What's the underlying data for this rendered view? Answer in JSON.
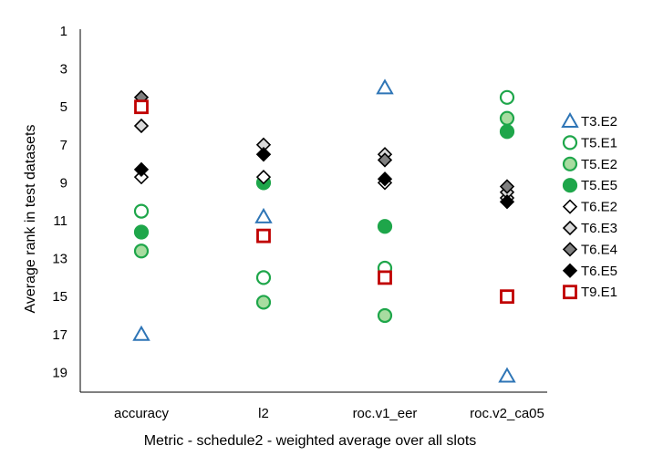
{
  "chart_data": {
    "type": "scatter",
    "xlabel": "Metric - schedule2 - weighted average over all slots",
    "ylabel": "Average rank in test datasets",
    "categories": [
      "accuracy",
      "l2",
      "roc.v1_eer",
      "roc.v2_ca05"
    ],
    "y_ticks": [
      "1",
      "3",
      "5",
      "7",
      "9",
      "11",
      "13",
      "15",
      "17",
      "19"
    ],
    "ylim": [
      1,
      20.2
    ],
    "y_inverted": true,
    "grid": false,
    "legend_position": "right",
    "series": [
      {
        "name": "T3.E2",
        "marker": "triangle-open",
        "color": "#2e75b6",
        "values": [
          17.0,
          10.8,
          4.0,
          19.2
        ]
      },
      {
        "name": "T5.E1",
        "marker": "circle-open",
        "color": "#1ea64a",
        "values": [
          10.5,
          14.0,
          13.5,
          4.5
        ]
      },
      {
        "name": "T5.E2",
        "marker": "circle-light",
        "color": "#1ea64a",
        "fill": "#a8dca0",
        "values": [
          12.6,
          15.3,
          16.0,
          5.6
        ]
      },
      {
        "name": "T5.E5",
        "marker": "circle-filled",
        "color": "#1ea64a",
        "values": [
          11.6,
          9.0,
          11.3,
          6.3
        ]
      },
      {
        "name": "T6.E2",
        "marker": "diamond-open",
        "color": "#000000",
        "values": [
          8.7,
          8.7,
          9.0,
          9.8
        ]
      },
      {
        "name": "T6.E3",
        "marker": "diamond-light",
        "color": "#000000",
        "fill": "#d9d9d9",
        "values": [
          6.0,
          7.0,
          7.5,
          9.5
        ]
      },
      {
        "name": "T6.E4",
        "marker": "diamond-gray",
        "color": "#000000",
        "fill": "#808080",
        "values": [
          4.5,
          7.5,
          7.8,
          9.2
        ]
      },
      {
        "name": "T6.E5",
        "marker": "diamond-filled",
        "color": "#000000",
        "values": [
          8.3,
          7.5,
          8.8,
          10.0
        ]
      },
      {
        "name": "T9.E1",
        "marker": "square-open",
        "color": "#c00000",
        "values": [
          5.0,
          11.8,
          14.0,
          15.0
        ]
      }
    ]
  }
}
